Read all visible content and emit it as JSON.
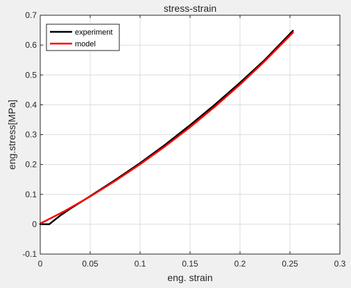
{
  "chart_data": {
    "type": "line",
    "title": "stress-strain",
    "xlabel": "eng. strain",
    "ylabel": "eng.stress[MPa]",
    "xlim": [
      0,
      0.3
    ],
    "ylim": [
      -0.1,
      0.7
    ],
    "xticks": [
      "0",
      "0.05",
      "0.1",
      "0.15",
      "0.2",
      "0.25",
      "0.3"
    ],
    "yticks": [
      "-0.1",
      "0",
      "0.1",
      "0.2",
      "0.3",
      "0.4",
      "0.5",
      "0.6",
      "0.7"
    ],
    "grid": true,
    "legend_position": "top-left",
    "series": [
      {
        "name": "experiment",
        "color": "#000000",
        "x": [
          0,
          0.005,
          0.009,
          0.012,
          0.02,
          0.03,
          0.05,
          0.075,
          0.1,
          0.125,
          0.15,
          0.175,
          0.2,
          0.225,
          0.253
        ],
        "y": [
          0,
          0,
          0,
          0.008,
          0.029,
          0.052,
          0.094,
          0.148,
          0.205,
          0.266,
          0.332,
          0.401,
          0.474,
          0.551,
          0.648
        ]
      },
      {
        "name": "model",
        "color": "#ff0000",
        "x": [
          0,
          0.025,
          0.05,
          0.075,
          0.1,
          0.125,
          0.15,
          0.175,
          0.2,
          0.225,
          0.253
        ],
        "y": [
          0.002,
          0.045,
          0.093,
          0.145,
          0.201,
          0.261,
          0.325,
          0.394,
          0.468,
          0.547,
          0.642
        ]
      }
    ]
  }
}
